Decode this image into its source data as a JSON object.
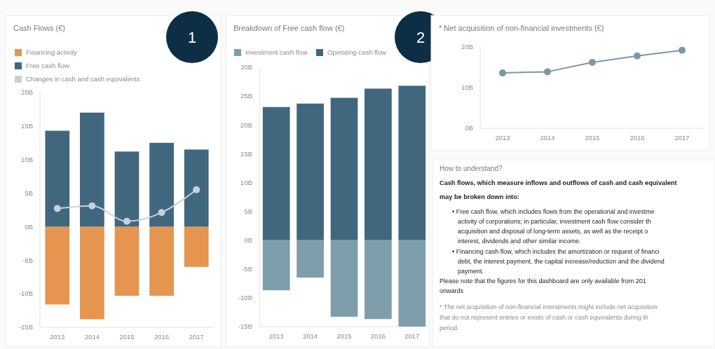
{
  "chart_data": [
    {
      "type": "bar",
      "title": "Cash Flows (€)",
      "stacked": true,
      "categories": [
        "2013",
        "2014",
        "2015",
        "2016",
        "2017"
      ],
      "ylim": [
        -15,
        20
      ],
      "yticks": [
        {
          "value": -15,
          "label": "-15B"
        },
        {
          "value": -10,
          "label": "-10B"
        },
        {
          "value": -5,
          "label": "-5B"
        },
        {
          "value": 0,
          "label": "0B"
        },
        {
          "value": 5,
          "label": "5B"
        },
        {
          "value": 10,
          "label": "10B"
        },
        {
          "value": 15,
          "label": "15B"
        },
        {
          "value": 20,
          "label": "20B"
        }
      ],
      "legend": "top left",
      "grid": false,
      "annotations": [
        "1"
      ],
      "series": [
        {
          "name": "Financing activity",
          "color": "#e5954f",
          "values": [
            -11.6,
            -13.8,
            -10.3,
            -10.3,
            -6.0
          ]
        },
        {
          "name": "Free cash flow",
          "color": "#41677f",
          "values": [
            14.3,
            17.0,
            11.2,
            12.5,
            11.5
          ]
        },
        {
          "name": "Changes in cash and cash equivalents",
          "type": "line",
          "color": "#c5d2dc",
          "marker": "circle",
          "values": [
            2.7,
            3.1,
            0.8,
            2.1,
            5.5
          ]
        }
      ]
    },
    {
      "type": "bar",
      "title": "Breakdown of Free cash flow (€)",
      "stacked": true,
      "categories": [
        "2013",
        "2014",
        "2015",
        "2016",
        "2017"
      ],
      "ylim": [
        -15,
        30
      ],
      "yticks": [
        {
          "value": -15,
          "label": "-15B"
        },
        {
          "value": -10,
          "label": "-10B"
        },
        {
          "value": -5,
          "label": "-5B"
        },
        {
          "value": 0,
          "label": "0B"
        },
        {
          "value": 5,
          "label": "5B"
        },
        {
          "value": 10,
          "label": "10B"
        },
        {
          "value": 15,
          "label": "15B"
        },
        {
          "value": 20,
          "label": "20B"
        },
        {
          "value": 25,
          "label": "25B"
        },
        {
          "value": 30,
          "label": "30B"
        }
      ],
      "legend": "top left",
      "grid": false,
      "annotations": [
        "2"
      ],
      "series": [
        {
          "name": "Investment cash flow",
          "color": "#7f9eab",
          "values": [
            -8.7,
            -6.5,
            -13.3,
            -13.7,
            -15.0
          ]
        },
        {
          "name": "Operating cash flow",
          "color": "#41677f",
          "values": [
            23.1,
            23.7,
            24.7,
            26.3,
            26.8
          ]
        }
      ]
    },
    {
      "type": "line",
      "title": "* Net acquisition of non-financial investments (€)",
      "categories": [
        "2013",
        "2014",
        "2015",
        "2016",
        "2017"
      ],
      "ylim": [
        0,
        20
      ],
      "yticks": [
        {
          "value": 0,
          "label": "0B"
        },
        {
          "value": 10,
          "label": "10B"
        },
        {
          "value": 20,
          "label": "20B"
        }
      ],
      "legend": false,
      "grid": false,
      "marker": "circle",
      "series": [
        {
          "color": "#7d97a6",
          "values": [
            13.6,
            13.9,
            16.2,
            17.8,
            19.2
          ]
        }
      ]
    },
    {
      "type": "other",
      "title": "How to understand?",
      "annotations": [
        "Cash flows, which measure inflows and outflows of cash and cash equivalent",
        "may be broken down into:",
        "• Free cash flow, which includes flows from the operational and investme",
        "activity of corporations; in particular, investment cash flow consider th",
        "acquisition and disposal of long-term assets, as well as the receipt o",
        "interest, dividends and other similar income.",
        "• Financing cash flow, which includes the amortization or request of financi",
        "debt, the interest payment, the capital increase/reduction and the dividend",
        "payment.",
        "Please note that the figures for this dashboard are only available from 201",
        "onwards",
        "* The net acquisition of non-financial investments might include net acquisition",
        "that do not represent entries or exists of cash or cash equivalents during th",
        "period."
      ]
    }
  ]
}
